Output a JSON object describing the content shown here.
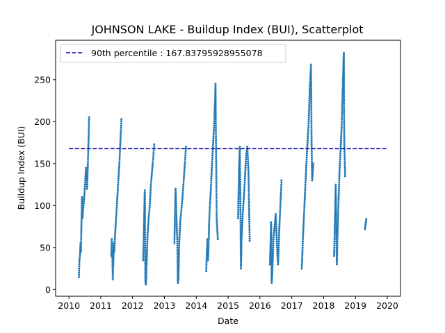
{
  "chart_data": {
    "type": "scatter",
    "title": "JOHNSON LAKE - Buildup Index (BUI), Scatterplot",
    "xlabel": "Date",
    "ylabel": "Buildup Index (BUI)",
    "xlim": [
      "2009-08-01",
      "2020-06-01"
    ],
    "ylim": [
      -8,
      297
    ],
    "x_ticks": [
      "2010",
      "2011",
      "2012",
      "2013",
      "2014",
      "2015",
      "2016",
      "2017",
      "2018",
      "2019",
      "2020"
    ],
    "y_ticks": [
      0,
      50,
      100,
      150,
      200,
      250
    ],
    "grid": false,
    "legend_position": "top-left",
    "point_color": "#1f77b4",
    "reference_line": {
      "label": "90th percentile : 167.83795928955078",
      "value": 167.83795928955078,
      "color": "#0000aa",
      "style": "dashed",
      "x_range": [
        "2010-01-01",
        "2020-01-01"
      ]
    },
    "series": [
      {
        "seasons": [
          {
            "start": "2010-04-25",
            "end": "2010-08-20",
            "points": [
              [
                0,
                15
              ],
              [
                0.05,
                35
              ],
              [
                0.1,
                40
              ],
              [
                0.15,
                55
              ],
              [
                0.2,
                45
              ],
              [
                0.25,
                80
              ],
              [
                0.3,
                110
              ],
              [
                0.35,
                85
              ],
              [
                0.45,
                100
              ],
              [
                0.55,
                115
              ],
              [
                0.62,
                130
              ],
              [
                0.7,
                145
              ],
              [
                0.8,
                120
              ],
              [
                0.88,
                150
              ],
              [
                0.95,
                180
              ],
              [
                1,
                205
              ]
            ]
          },
          {
            "start": "2011-05-01",
            "end": "2011-08-25",
            "points": [
              [
                0,
                40
              ],
              [
                0.05,
                60
              ],
              [
                0.1,
                50
              ],
              [
                0.15,
                12
              ],
              [
                0.2,
                30
              ],
              [
                0.25,
                55
              ],
              [
                0.3,
                45
              ],
              [
                0.4,
                70
              ],
              [
                0.5,
                90
              ],
              [
                0.6,
                110
              ],
              [
                0.7,
                130
              ],
              [
                0.8,
                150
              ],
              [
                0.9,
                175
              ],
              [
                1,
                203
              ]
            ]
          },
          {
            "start": "2012-05-01",
            "end": "2012-09-05",
            "points": [
              [
                0,
                35
              ],
              [
                0.05,
                60
              ],
              [
                0.1,
                95
              ],
              [
                0.15,
                118
              ],
              [
                0.2,
                10
              ],
              [
                0.25,
                6
              ],
              [
                0.3,
                25
              ],
              [
                0.35,
                45
              ],
              [
                0.4,
                65
              ],
              [
                0.5,
                85
              ],
              [
                0.6,
                100
              ],
              [
                0.7,
                125
              ],
              [
                0.8,
                140
              ],
              [
                0.9,
                155
              ],
              [
                1,
                173
              ]
            ]
          },
          {
            "start": "2013-04-25",
            "end": "2013-09-05",
            "points": [
              [
                0,
                55
              ],
              [
                0.05,
                90
              ],
              [
                0.1,
                120
              ],
              [
                0.15,
                100
              ],
              [
                0.2,
                75
              ],
              [
                0.25,
                60
              ],
              [
                0.3,
                8
              ],
              [
                0.35,
                12
              ],
              [
                0.4,
                50
              ],
              [
                0.5,
                80
              ],
              [
                0.6,
                95
              ],
              [
                0.7,
                110
              ],
              [
                0.8,
                130
              ],
              [
                0.9,
                150
              ],
              [
                1,
                170
              ]
            ]
          },
          {
            "start": "2014-04-25",
            "end": "2014-09-05",
            "points": [
              [
                0,
                22
              ],
              [
                0.05,
                45
              ],
              [
                0.1,
                60
              ],
              [
                0.15,
                35
              ],
              [
                0.2,
                50
              ],
              [
                0.25,
                80
              ],
              [
                0.3,
                95
              ],
              [
                0.4,
                120
              ],
              [
                0.5,
                150
              ],
              [
                0.6,
                175
              ],
              [
                0.7,
                200
              ],
              [
                0.8,
                245
              ],
              [
                0.9,
                85
              ],
              [
                1,
                60
              ]
            ]
          },
          {
            "start": "2015-04-25",
            "end": "2015-09-05",
            "points": [
              [
                0,
                85
              ],
              [
                0.05,
                120
              ],
              [
                0.1,
                150
              ],
              [
                0.15,
                170
              ],
              [
                0.2,
                100
              ],
              [
                0.25,
                25
              ],
              [
                0.3,
                60
              ],
              [
                0.4,
                90
              ],
              [
                0.5,
                110
              ],
              [
                0.6,
                135
              ],
              [
                0.7,
                160
              ],
              [
                0.8,
                170
              ],
              [
                0.9,
                140
              ],
              [
                1,
                58
              ]
            ]
          },
          {
            "start": "2016-04-25",
            "end": "2016-09-05",
            "points": [
              [
                0,
                30
              ],
              [
                0.05,
                55
              ],
              [
                0.1,
                80
              ],
              [
                0.15,
                8
              ],
              [
                0.2,
                20
              ],
              [
                0.25,
                40
              ],
              [
                0.3,
                60
              ],
              [
                0.4,
                75
              ],
              [
                0.5,
                90
              ],
              [
                0.6,
                55
              ],
              [
                0.7,
                30
              ],
              [
                0.8,
                70
              ],
              [
                0.9,
                100
              ],
              [
                1,
                130
              ]
            ]
          },
          {
            "start": "2017-04-25",
            "end": "2017-09-05",
            "points": [
              [
                0,
                25
              ],
              [
                0.05,
                40
              ],
              [
                0.1,
                60
              ],
              [
                0.2,
                90
              ],
              [
                0.3,
                120
              ],
              [
                0.4,
                150
              ],
              [
                0.5,
                175
              ],
              [
                0.6,
                200
              ],
              [
                0.7,
                240
              ],
              [
                0.8,
                268
              ],
              [
                0.85,
                175
              ],
              [
                0.9,
                130
              ],
              [
                1,
                150
              ]
            ]
          },
          {
            "start": "2018-05-01",
            "end": "2018-09-05",
            "points": [
              [
                0,
                40
              ],
              [
                0.05,
                65
              ],
              [
                0.1,
                95
              ],
              [
                0.15,
                125
              ],
              [
                0.2,
                75
              ],
              [
                0.25,
                30
              ],
              [
                0.3,
                60
              ],
              [
                0.4,
                105
              ],
              [
                0.5,
                145
              ],
              [
                0.6,
                170
              ],
              [
                0.7,
                200
              ],
              [
                0.8,
                250
              ],
              [
                0.88,
                282
              ],
              [
                0.92,
                175
              ],
              [
                1,
                135
              ]
            ]
          },
          {
            "start": "2019-04-20",
            "end": "2019-05-05",
            "points": [
              [
                0,
                72
              ],
              [
                0.5,
                78
              ],
              [
                1,
                84
              ]
            ]
          }
        ]
      }
    ]
  }
}
